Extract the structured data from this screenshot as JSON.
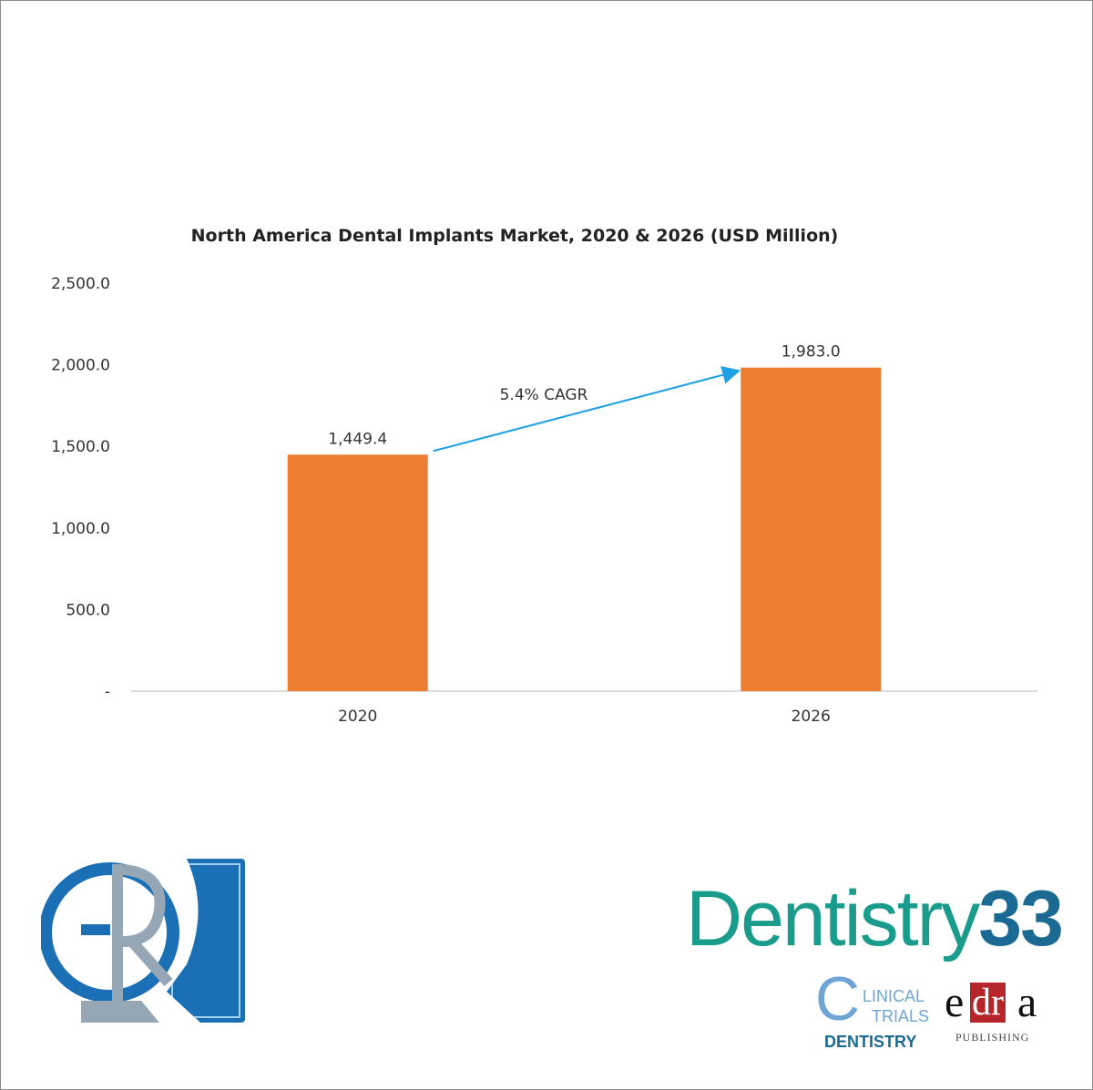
{
  "chart_data": {
    "type": "bar",
    "title": "North America Dental Implants Market, 2020 & 2026 (USD Million)",
    "categories": [
      "2020",
      "2026"
    ],
    "values": [
      1449.4,
      1983.0
    ],
    "data_labels": [
      "1,449.4",
      "1,983.0"
    ],
    "ylim": [
      0,
      2500
    ],
    "yticks": [
      0,
      500,
      1000,
      1500,
      2000,
      2500
    ],
    "ytick_labels": [
      "-",
      "500.0",
      "1,000.0",
      "1,500.0",
      "2,000.0",
      "2,500.0"
    ],
    "xlabel": "",
    "ylabel": "",
    "bar_color": "#ed7d31",
    "grid": false,
    "annotation": {
      "text": "5.4% CAGR",
      "arrow_color": "#1ea0e6",
      "from": "2020",
      "to": "2026"
    }
  },
  "logos": {
    "gr": "GR",
    "dentistry33": {
      "word": "Dentistry",
      "number": "33"
    },
    "clinical_trials": {
      "c": "C",
      "line1": "LINICAL",
      "line2": "TRIALS",
      "line3": "DENTISTRY"
    },
    "edra": {
      "e": "e",
      "dr": "dr",
      "a": "a",
      "sub": "PUBLISHING"
    }
  }
}
